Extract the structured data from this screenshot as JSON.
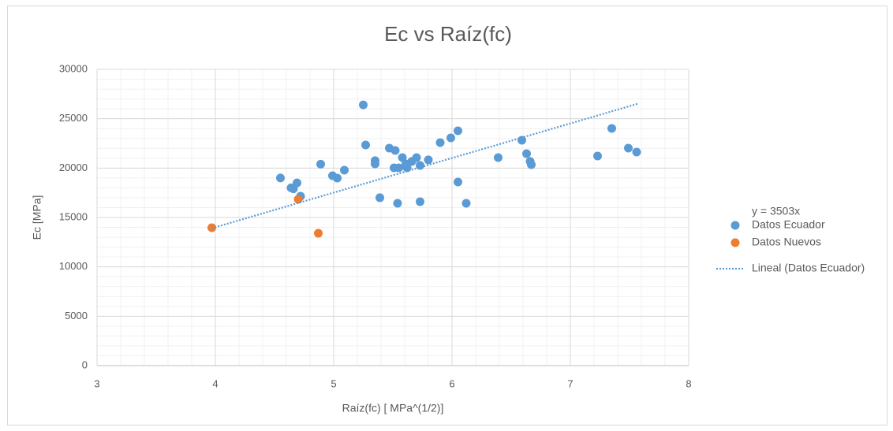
{
  "chart_data": {
    "type": "scatter",
    "title": "Ec vs Raíz(fc)",
    "x_label": "Raíz(fc)  [ MPa^(1/2)]",
    "y_label": "Ec [MPa]",
    "xlim": [
      3,
      8
    ],
    "ylim": [
      0,
      30000
    ],
    "xticks": [
      3,
      4,
      5,
      6,
      7,
      8
    ],
    "yticks": [
      0,
      5000,
      10000,
      15000,
      20000,
      25000,
      30000
    ],
    "grid": true,
    "minor_grid_step": {
      "x": 0.2,
      "y": 1000
    },
    "legend": "right",
    "series": [
      {
        "name": "Datos Ecuador",
        "color": "#5b9bd5",
        "x": [
          4.55,
          4.64,
          4.66,
          4.69,
          4.72,
          4.89,
          4.99,
          5.03,
          5.09,
          5.25,
          5.27,
          5.35,
          5.35,
          5.39,
          5.47,
          5.52,
          5.51,
          5.55,
          5.54,
          5.58,
          5.62,
          5.61,
          5.66,
          5.7,
          5.73,
          5.73,
          5.8,
          5.9,
          5.99,
          6.05,
          6.05,
          6.12,
          6.39,
          6.59,
          6.63,
          6.66,
          6.67,
          7.23,
          7.35,
          7.49,
          7.56
        ],
        "values": [
          19000,
          18000,
          17900,
          18500,
          17150,
          20400,
          19230,
          18990,
          19790,
          26400,
          22340,
          20750,
          20430,
          17000,
          22020,
          21780,
          20030,
          20030,
          16440,
          21060,
          20030,
          20430,
          20670,
          21060,
          20270,
          16600,
          20830,
          22580,
          23060,
          23780,
          18590,
          16440,
          21060,
          22820,
          21460,
          20670,
          20350,
          21220,
          24020,
          22020,
          21620
        ]
      },
      {
        "name": "Datos Nuevos",
        "color": "#ed7d31",
        "x": [
          3.97,
          4.7,
          4.87
        ],
        "values": [
          13960,
          16840,
          13400
        ]
      }
    ],
    "trendline": {
      "name": "Lineal (Datos Ecuador)",
      "equation": "y = 3503x",
      "slope": 3503,
      "x_range": [
        3.97,
        7.57
      ],
      "color": "#5b9bd5"
    }
  }
}
